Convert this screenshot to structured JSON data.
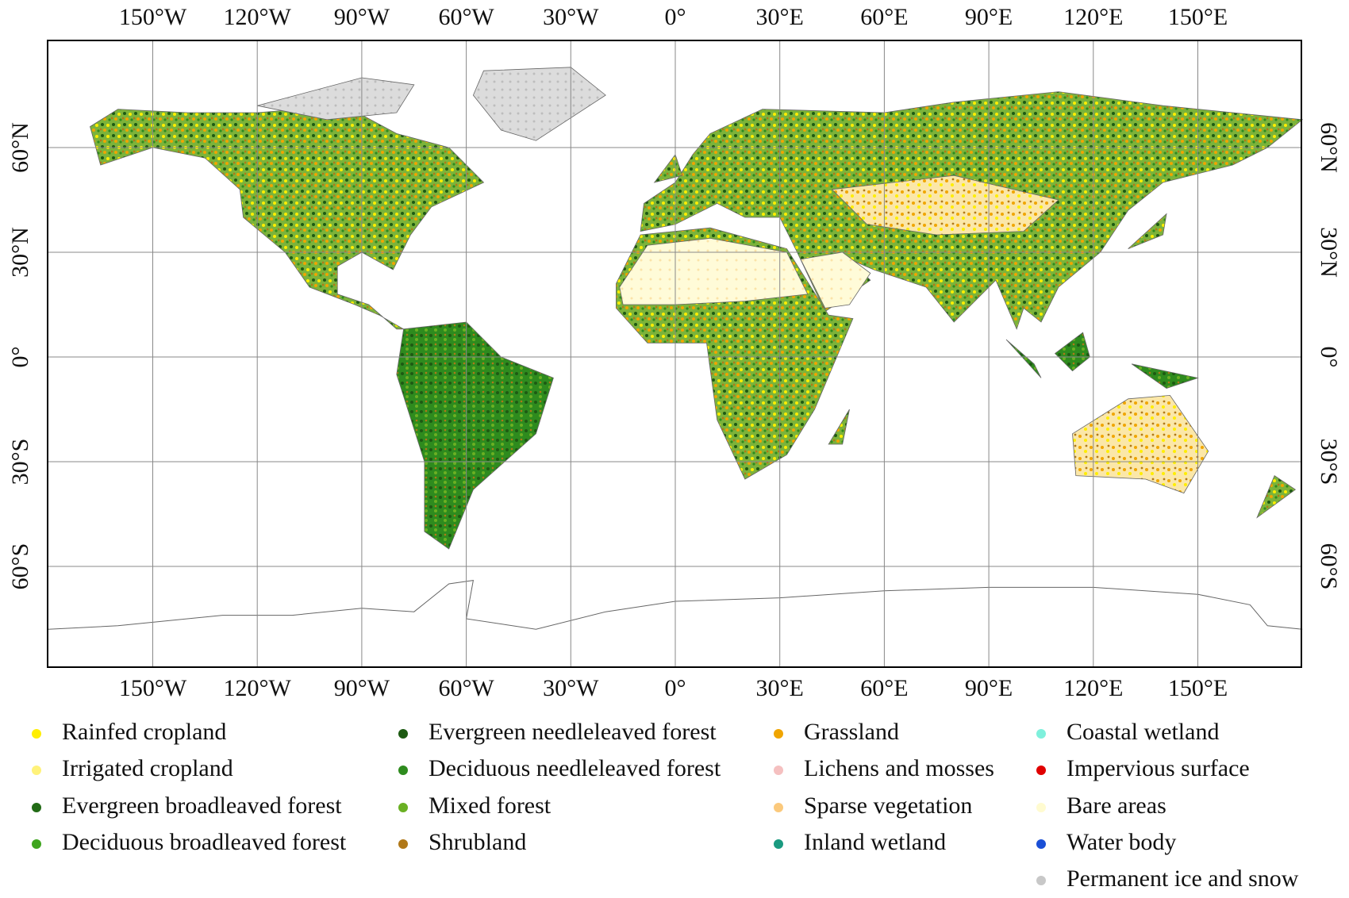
{
  "map": {
    "lon_ticks": [
      {
        "value": -150,
        "label": "150°W"
      },
      {
        "value": -120,
        "label": "120°W"
      },
      {
        "value": -90,
        "label": "90°W"
      },
      {
        "value": -60,
        "label": "60°W"
      },
      {
        "value": -30,
        "label": "30°W"
      },
      {
        "value": 0,
        "label": "0°"
      },
      {
        "value": 30,
        "label": "30°E"
      },
      {
        "value": 60,
        "label": "60°E"
      },
      {
        "value": 90,
        "label": "90°E"
      },
      {
        "value": 120,
        "label": "120°E"
      },
      {
        "value": 150,
        "label": "150°E"
      }
    ],
    "lat_ticks": [
      {
        "value": 60,
        "label": "60°N"
      },
      {
        "value": 30,
        "label": "30°N"
      },
      {
        "value": 0,
        "label": "0°"
      },
      {
        "value": -30,
        "label": "30°S"
      },
      {
        "value": -60,
        "label": "60°S"
      }
    ],
    "legend": [
      {
        "name": "Rainfed cropland",
        "color": "#ffee00"
      },
      {
        "name": "Irrigated cropland",
        "color": "#fff27a"
      },
      {
        "name": "Evergreen broadleaved forest",
        "color": "#226b16"
      },
      {
        "name": "Deciduous broadleaved forest",
        "color": "#3fa51f"
      },
      {
        "name": "Evergreen needleleaved forest",
        "color": "#1d5a12"
      },
      {
        "name": "Deciduous needleleaved forest",
        "color": "#2e8b1e"
      },
      {
        "name": "Mixed forest",
        "color": "#6ab023"
      },
      {
        "name": "Shrubland",
        "color": "#b07818"
      },
      {
        "name": "Grassland",
        "color": "#f0a500"
      },
      {
        "name": "Lichens and mosses",
        "color": "#f5c0c0"
      },
      {
        "name": "Sparse vegetation",
        "color": "#fbc97c"
      },
      {
        "name": "Inland wetland",
        "color": "#1a9a80"
      },
      {
        "name": "Coastal wetland",
        "color": "#7ff0dc"
      },
      {
        "name": "Impervious surface",
        "color": "#e00000"
      },
      {
        "name": "Bare areas",
        "color": "#fffbd0"
      },
      {
        "name": "Water body",
        "color": "#1a4fd6"
      },
      {
        "name": "Permanent ice and snow",
        "color": "#c8c8c8"
      }
    ]
  }
}
